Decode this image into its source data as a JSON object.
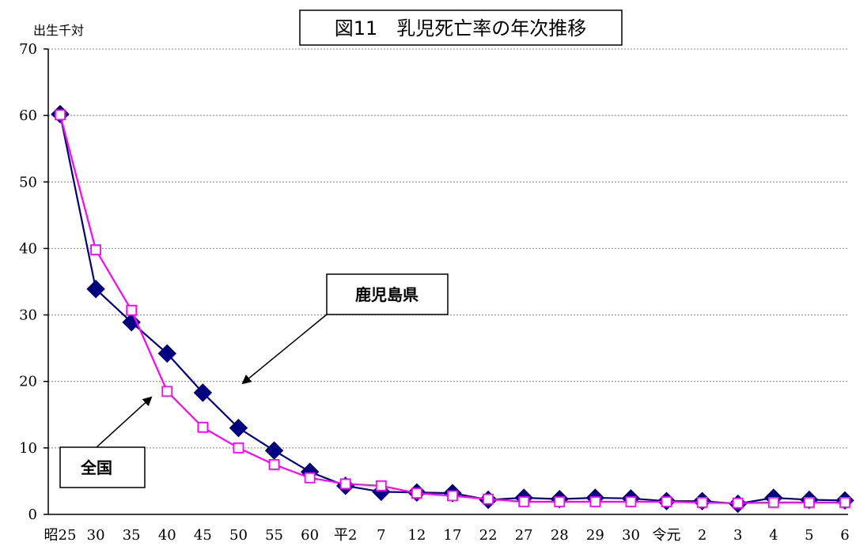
{
  "chart_data": {
    "type": "line",
    "title": "図11　乳児死亡率の年次推移",
    "ylabel": "出生千対",
    "xlabel": "",
    "ylim": [
      0,
      70
    ],
    "yticks": [
      0,
      10,
      20,
      30,
      40,
      50,
      60,
      70
    ],
    "grid": true,
    "categories": [
      "昭25",
      "30",
      "35",
      "40",
      "45",
      "50",
      "55",
      "60",
      "平2",
      "7",
      "12",
      "17",
      "22",
      "27",
      "28",
      "29",
      "30",
      "令元",
      "2",
      "3",
      "4",
      "5",
      "6"
    ],
    "series": [
      {
        "name": "鹿児島県",
        "color": "#000080",
        "marker": "filled-diamond",
        "values": [
          60.2,
          33.9,
          28.9,
          24.2,
          18.3,
          13.0,
          9.6,
          6.4,
          4.3,
          3.4,
          3.3,
          3.2,
          2.2,
          2.5,
          2.3,
          2.5,
          2.4,
          2.0,
          2.0,
          1.6,
          2.5,
          2.2,
          2.1
        ]
      },
      {
        "name": "全国",
        "color": "#ff00ff",
        "marker": "open-square",
        "values": [
          60.1,
          39.8,
          30.7,
          18.5,
          13.1,
          10.0,
          7.5,
          5.5,
          4.6,
          4.3,
          3.2,
          2.8,
          2.3,
          1.9,
          1.9,
          1.9,
          1.9,
          1.9,
          1.8,
          1.7,
          1.8,
          1.8,
          1.8
        ]
      }
    ],
    "annotations": [
      {
        "label": "鹿児島県",
        "series": 0
      },
      {
        "label": "全国",
        "series": 1
      }
    ]
  }
}
